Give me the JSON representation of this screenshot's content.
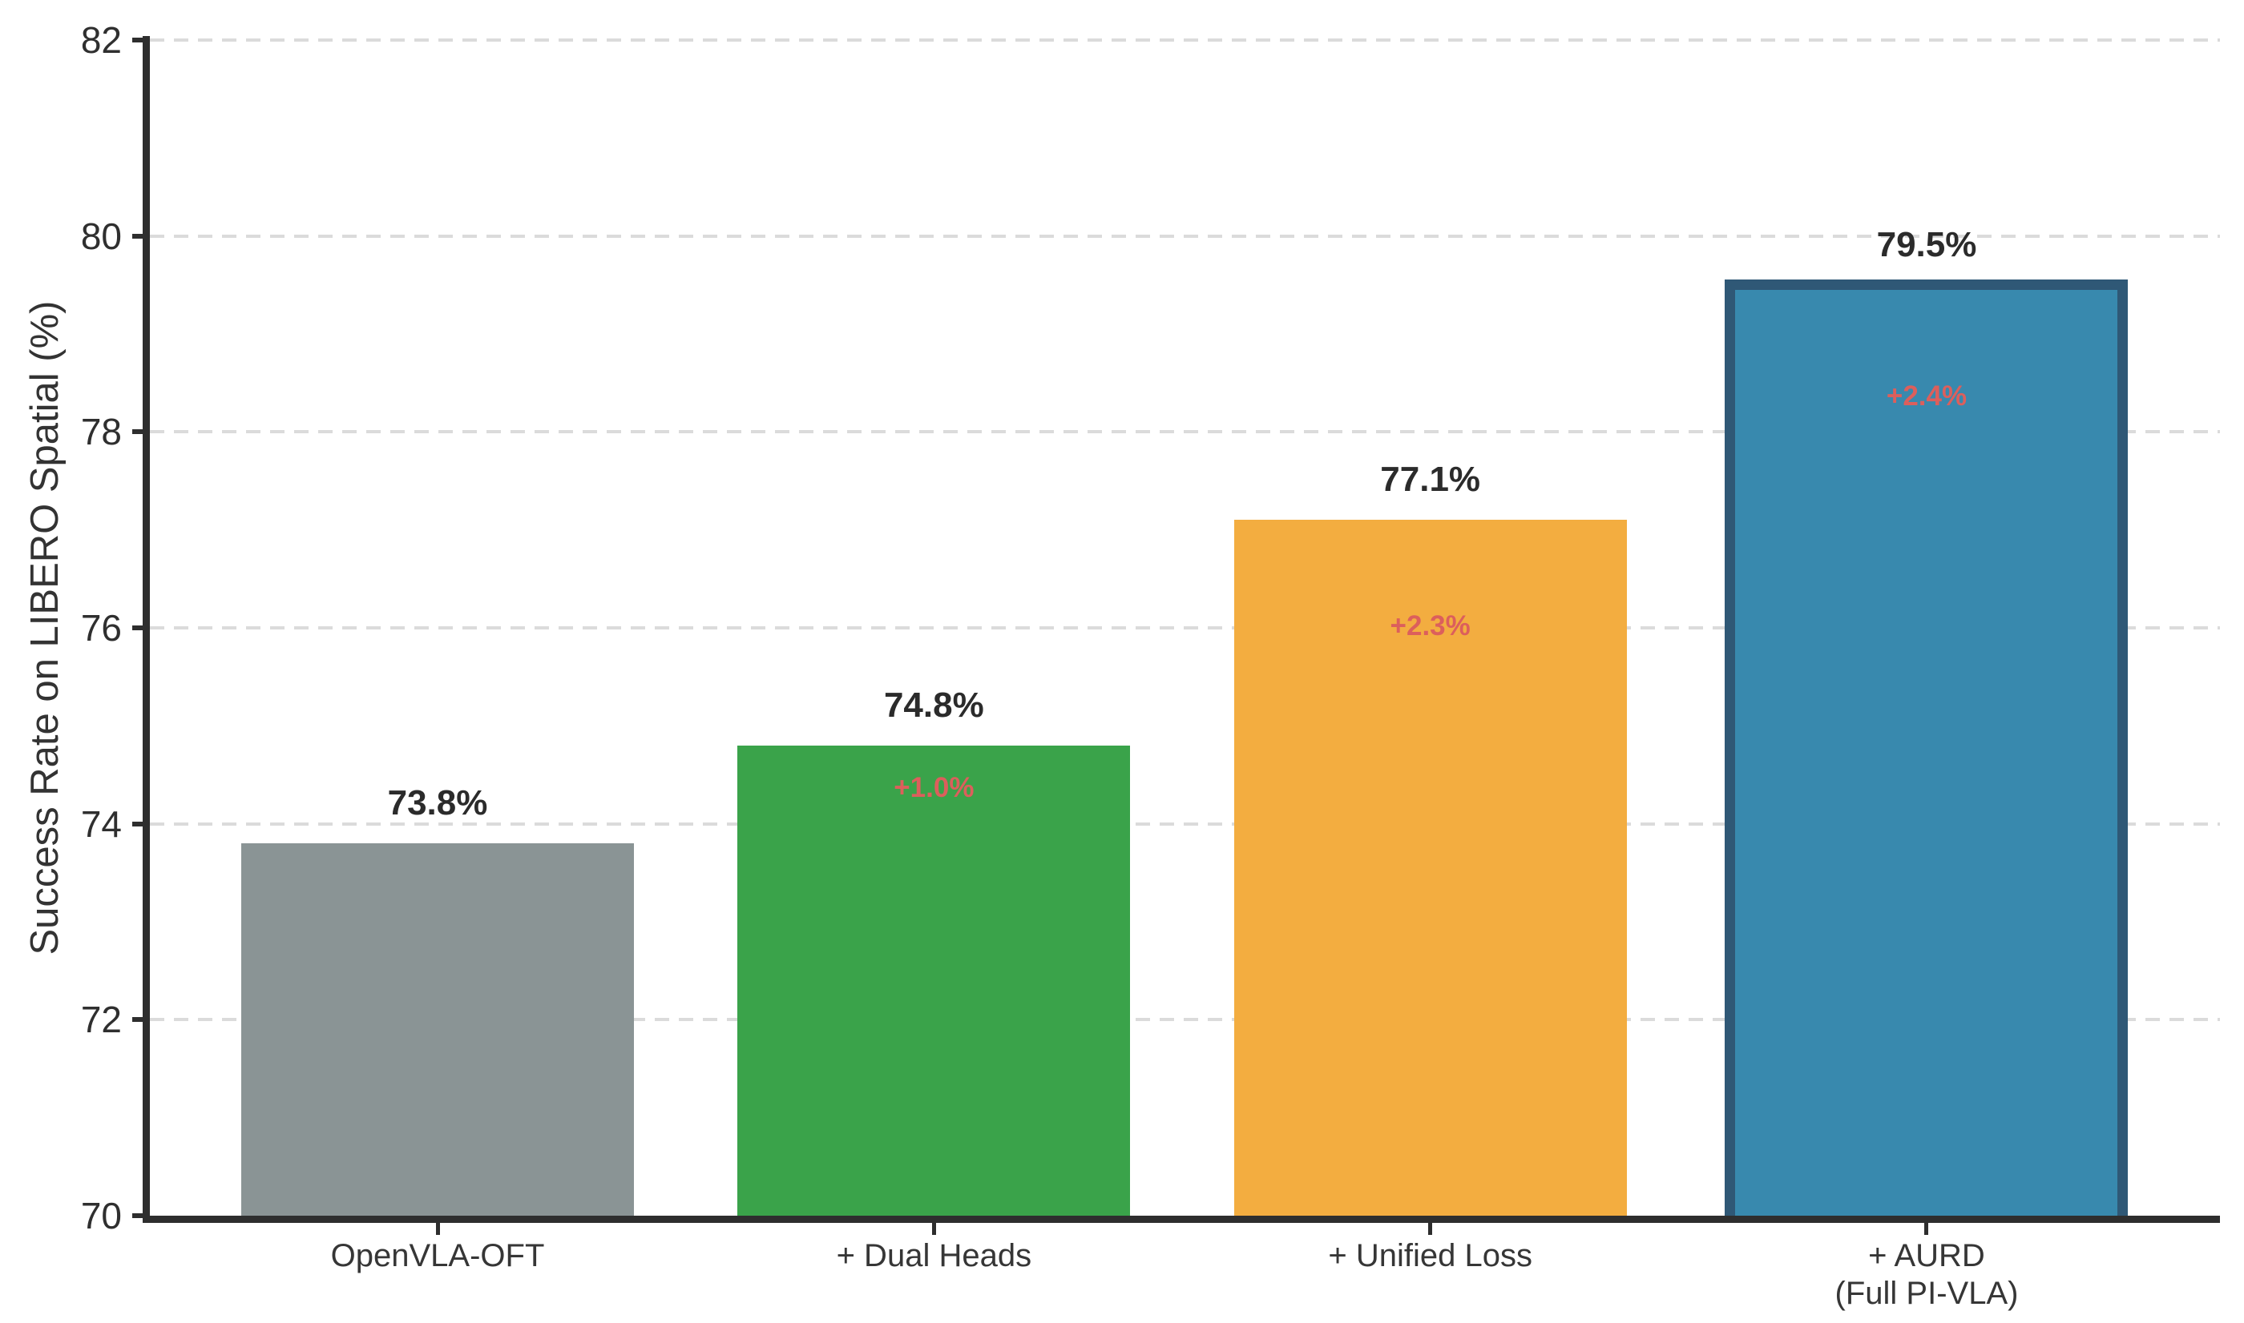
{
  "chart_data": {
    "type": "bar",
    "title": "",
    "xlabel": "",
    "ylabel": "Success Rate on LIBERO Spatial (%)",
    "ylim": [
      70,
      82
    ],
    "yticks": [
      70,
      72,
      74,
      76,
      78,
      80,
      82
    ],
    "ytick_labels": [
      "70",
      "72",
      "74",
      "76",
      "78",
      "80",
      "82"
    ],
    "grid": "horizontal dashed, light gray, behind bars",
    "legend": "none",
    "categories": [
      "OpenVLA-OFT",
      "+ Dual Heads",
      "+ Unified Loss",
      "+ AURD\n(Full PI-VLA)"
    ],
    "values": [
      73.8,
      74.8,
      77.1,
      79.5
    ],
    "value_labels": [
      "73.8%",
      "74.8%",
      "77.1%",
      "79.5%"
    ],
    "delta_labels": [
      null,
      "+1.0%",
      "+2.3%",
      "+2.4%"
    ],
    "delta_note": "delta label drawn inside each bar at the vertical midpoint between the previous bar's value and this bar's value",
    "bar_colors": [
      "#8a9495",
      "#3aa34a",
      "#f3ad40",
      "#3889ae"
    ],
    "highlight_bar_index": 3,
    "highlight_border_color": "#2f5876",
    "value_text_color": "#2b2b2b",
    "delta_text_color": "#dc5f5c",
    "axis_color": "#2e2e2e",
    "gridline_color": "#dbdbdb"
  }
}
